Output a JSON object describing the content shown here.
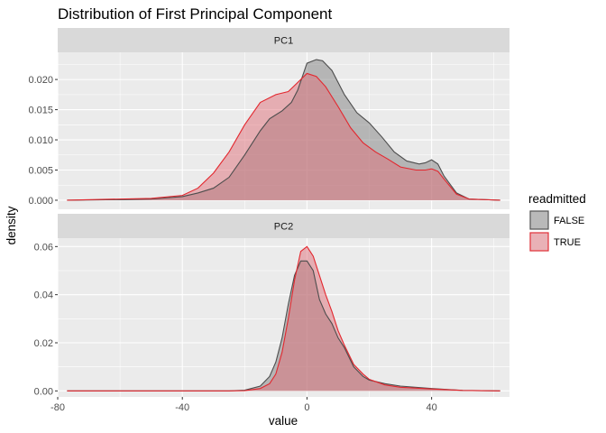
{
  "chart_data": {
    "type": "area",
    "title": "Distribution of First Principal Component",
    "xlabel": "value",
    "ylabel": "density",
    "xlim": [
      -80,
      65
    ],
    "x_ticks": [
      -80,
      -40,
      0,
      40
    ],
    "x_tick_labels": [
      "-80",
      "-40",
      "0",
      "40"
    ],
    "grid": true,
    "legend": {
      "title": "readmitted",
      "placement": "right",
      "entries": [
        {
          "label": "FALSE",
          "fill": "#7f7f7f",
          "stroke": "#4d4d4d"
        },
        {
          "label": "TRUE",
          "fill": "#e0707a",
          "stroke": "#e3272e"
        }
      ]
    },
    "panels": [
      {
        "label": "PC1",
        "ylim": [
          -0.0015,
          0.0245
        ],
        "y_ticks": [
          0,
          0.005,
          0.01,
          0.015,
          0.02
        ],
        "y_tick_labels": [
          "0.000",
          "0.005",
          "0.010",
          "0.015",
          "0.020"
        ],
        "series": [
          {
            "name": "FALSE",
            "x": [
              -77,
              -60,
              -50,
              -40,
              -35,
              -30,
              -25,
              -20,
              -15,
              -12,
              -8,
              -5,
              -3,
              0,
              3,
              5,
              8,
              12,
              16,
              20,
              24,
              28,
              32,
              36,
              38,
              40,
              42,
              44,
              48,
              52,
              62
            ],
            "y": [
              0,
              0.0001,
              0.0002,
              0.0006,
              0.0012,
              0.002,
              0.0038,
              0.0075,
              0.0115,
              0.0135,
              0.0148,
              0.0162,
              0.0182,
              0.0227,
              0.0233,
              0.0231,
              0.0215,
              0.0175,
              0.0145,
              0.0128,
              0.0105,
              0.008,
              0.0065,
              0.006,
              0.0062,
              0.0067,
              0.006,
              0.004,
              0.0012,
              0.0002,
              0
            ]
          },
          {
            "name": "TRUE",
            "x": [
              -77,
              -60,
              -50,
              -40,
              -35,
              -30,
              -25,
              -20,
              -15,
              -10,
              -6,
              -3,
              0,
              3,
              6,
              10,
              14,
              18,
              22,
              26,
              30,
              35,
              38,
              40,
              42,
              44,
              48,
              52,
              62
            ],
            "y": [
              0,
              0.0002,
              0.0003,
              0.0008,
              0.002,
              0.0045,
              0.008,
              0.0125,
              0.0162,
              0.0175,
              0.018,
              0.0195,
              0.021,
              0.0205,
              0.0188,
              0.0155,
              0.012,
              0.0095,
              0.008,
              0.0068,
              0.0055,
              0.005,
              0.005,
              0.0052,
              0.0048,
              0.0035,
              0.001,
              0.0002,
              0
            ]
          }
        ]
      },
      {
        "label": "PC2",
        "ylim": [
          -0.0025,
          0.0635
        ],
        "y_ticks": [
          0,
          0.02,
          0.04,
          0.06
        ],
        "y_tick_labels": [
          "0.00",
          "0.02",
          "0.04",
          "0.06"
        ],
        "series": [
          {
            "name": "FALSE",
            "x": [
              -77,
              -40,
              -25,
              -20,
              -15,
              -12,
              -10,
              -8,
              -6,
              -4,
              -2,
              0,
              2,
              4,
              6,
              8,
              10,
              12,
              15,
              18,
              20,
              25,
              30,
              40,
              50,
              62
            ],
            "y": [
              0,
              0,
              0,
              0.0003,
              0.002,
              0.006,
              0.012,
              0.022,
              0.036,
              0.048,
              0.054,
              0.054,
              0.05,
              0.038,
              0.032,
              0.028,
              0.022,
              0.018,
              0.01,
              0.006,
              0.0045,
              0.003,
              0.002,
              0.001,
              0.0002,
              0
            ]
          },
          {
            "name": "TRUE",
            "x": [
              -77,
              -40,
              -25,
              -20,
              -15,
              -12,
              -10,
              -8,
              -6,
              -4,
              -2,
              0,
              2,
              4,
              6,
              8,
              10,
              12,
              15,
              18,
              20,
              25,
              30,
              40,
              50,
              62
            ],
            "y": [
              0,
              0,
              0,
              0.0001,
              0.001,
              0.003,
              0.007,
              0.016,
              0.03,
              0.046,
              0.058,
              0.06,
              0.056,
              0.048,
              0.04,
              0.033,
              0.025,
              0.019,
              0.011,
              0.007,
              0.0048,
              0.0025,
              0.0015,
              0.0008,
              0.0002,
              0
            ]
          }
        ]
      }
    ]
  }
}
